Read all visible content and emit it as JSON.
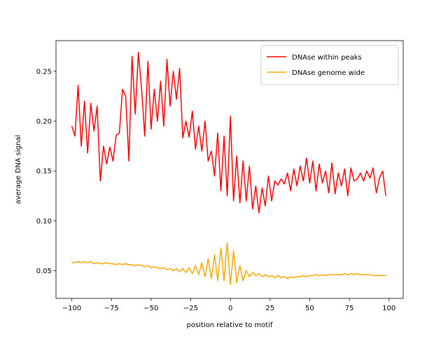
{
  "chart_data": {
    "type": "line",
    "xlabel": "position relative to motif",
    "ylabel": "average DNA signal",
    "x": [
      -100,
      -98,
      -96,
      -94,
      -92,
      -90,
      -88,
      -86,
      -84,
      -82,
      -80,
      -78,
      -76,
      -74,
      -72,
      -70,
      -68,
      -66,
      -64,
      -62,
      -60,
      -58,
      -56,
      -54,
      -52,
      -50,
      -48,
      -46,
      -44,
      -42,
      -40,
      -38,
      -36,
      -34,
      -32,
      -30,
      -28,
      -26,
      -24,
      -22,
      -20,
      -18,
      -16,
      -14,
      -12,
      -10,
      -8,
      -6,
      -4,
      -2,
      0,
      2,
      4,
      6,
      8,
      10,
      12,
      14,
      16,
      18,
      20,
      22,
      24,
      26,
      28,
      30,
      32,
      34,
      36,
      38,
      40,
      42,
      44,
      46,
      48,
      50,
      52,
      54,
      56,
      58,
      60,
      62,
      64,
      66,
      68,
      70,
      72,
      74,
      76,
      78,
      80,
      82,
      84,
      86,
      88,
      90,
      92,
      94,
      96,
      98
    ],
    "series": [
      {
        "name": "DNAse within peaks",
        "color": "#ff0000",
        "values": [
          0.195,
          0.185,
          0.236,
          0.175,
          0.22,
          0.168,
          0.218,
          0.19,
          0.215,
          0.14,
          0.175,
          0.157,
          0.174,
          0.16,
          0.186,
          0.188,
          0.232,
          0.225,
          0.16,
          0.265,
          0.207,
          0.269,
          0.233,
          0.185,
          0.26,
          0.192,
          0.232,
          0.2,
          0.24,
          0.195,
          0.262,
          0.215,
          0.25,
          0.222,
          0.253,
          0.183,
          0.2,
          0.184,
          0.21,
          0.172,
          0.195,
          0.17,
          0.2,
          0.16,
          0.17,
          0.145,
          0.188,
          0.13,
          0.185,
          0.125,
          0.205,
          0.12,
          0.165,
          0.118,
          0.16,
          0.12,
          0.155,
          0.112,
          0.135,
          0.108,
          0.133,
          0.115,
          0.145,
          0.12,
          0.14,
          0.136,
          0.142,
          0.137,
          0.148,
          0.13,
          0.152,
          0.135,
          0.155,
          0.14,
          0.163,
          0.138,
          0.16,
          0.13,
          0.157,
          0.138,
          0.15,
          0.128,
          0.158,
          0.127,
          0.148,
          0.135,
          0.152,
          0.125,
          0.153,
          0.14,
          0.142,
          0.148,
          0.14,
          0.15,
          0.143,
          0.153,
          0.128,
          0.143,
          0.15,
          0.125
        ]
      },
      {
        "name": "DNAse genome wide",
        "color": "#ffa500",
        "values": [
          0.058,
          0.058,
          0.059,
          0.058,
          0.059,
          0.058,
          0.059,
          0.057,
          0.058,
          0.057,
          0.057,
          0.058,
          0.057,
          0.057,
          0.056,
          0.057,
          0.056,
          0.057,
          0.056,
          0.056,
          0.055,
          0.056,
          0.055,
          0.054,
          0.055,
          0.053,
          0.054,
          0.053,
          0.052,
          0.053,
          0.051,
          0.052,
          0.05,
          0.052,
          0.049,
          0.052,
          0.048,
          0.053,
          0.047,
          0.055,
          0.046,
          0.058,
          0.044,
          0.062,
          0.042,
          0.066,
          0.04,
          0.073,
          0.04,
          0.078,
          0.036,
          0.07,
          0.038,
          0.055,
          0.04,
          0.05,
          0.044,
          0.048,
          0.045,
          0.047,
          0.044,
          0.046,
          0.044,
          0.045,
          0.043,
          0.045,
          0.043,
          0.044,
          0.042,
          0.044,
          0.043,
          0.044,
          0.044,
          0.045,
          0.044,
          0.045,
          0.045,
          0.046,
          0.045,
          0.046,
          0.045,
          0.046,
          0.046,
          0.046,
          0.046,
          0.046,
          0.047,
          0.046,
          0.047,
          0.046,
          0.047,
          0.046,
          0.046,
          0.046,
          0.046,
          0.045,
          0.045,
          0.045,
          0.045,
          0.045
        ]
      }
    ],
    "xlim": [
      -109.95,
      108.95
    ],
    "ylim": [
      0.0222,
      0.2808
    ],
    "xticks": [
      {
        "value": -100,
        "label": "−100"
      },
      {
        "value": -75,
        "label": "−75"
      },
      {
        "value": -50,
        "label": "−50"
      },
      {
        "value": -25,
        "label": "−25"
      },
      0,
      25,
      50,
      75,
      100
    ],
    "yticks": [
      0.05,
      {
        "value": 0.1,
        "label": "0.10"
      },
      0.15,
      {
        "value": 0.2,
        "label": "0.20"
      },
      0.25
    ],
    "legend": "upper right"
  }
}
